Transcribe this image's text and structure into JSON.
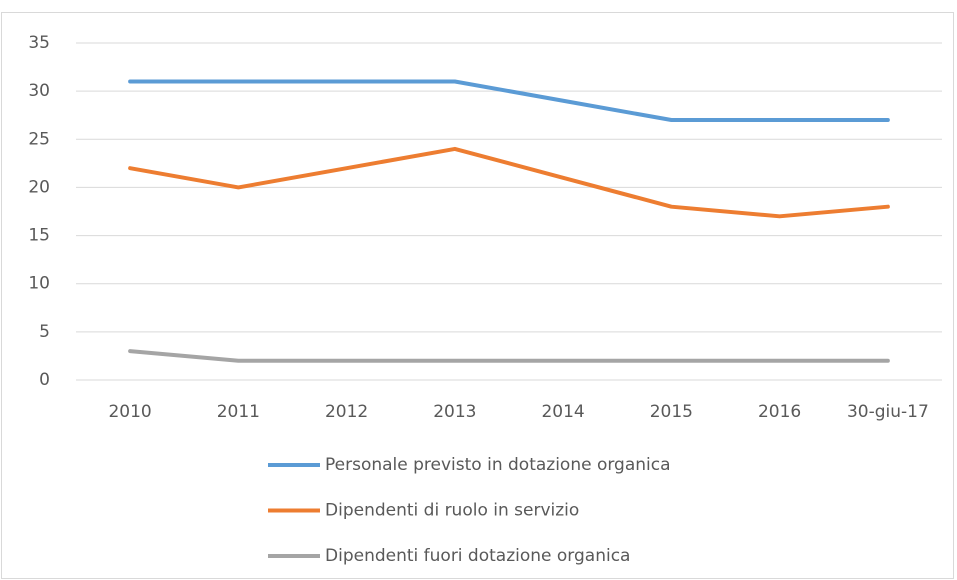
{
  "chart_data": {
    "type": "line",
    "categories": [
      "2010",
      "2011",
      "2012",
      "2013",
      "2014",
      "2015",
      "2016",
      "30-giu-17"
    ],
    "series": [
      {
        "name": "Personale previsto in dotazione organica",
        "color": "#5b9bd5",
        "values": [
          31,
          31,
          31,
          31,
          29,
          27,
          27,
          27
        ]
      },
      {
        "name": "Dipendenti di ruolo in servizio",
        "color": "#ed7d31",
        "values": [
          22,
          20,
          22,
          24,
          21,
          18,
          17,
          18
        ]
      },
      {
        "name": "Dipendenti fuori dotazione organica",
        "color": "#a5a5a5",
        "values": [
          3,
          2,
          2,
          2,
          2,
          2,
          2,
          2
        ]
      }
    ],
    "ylim": [
      0,
      35
    ],
    "yticks": [
      0,
      5,
      10,
      15,
      20,
      25,
      30,
      35
    ],
    "grid": true,
    "legend": "bottom"
  }
}
